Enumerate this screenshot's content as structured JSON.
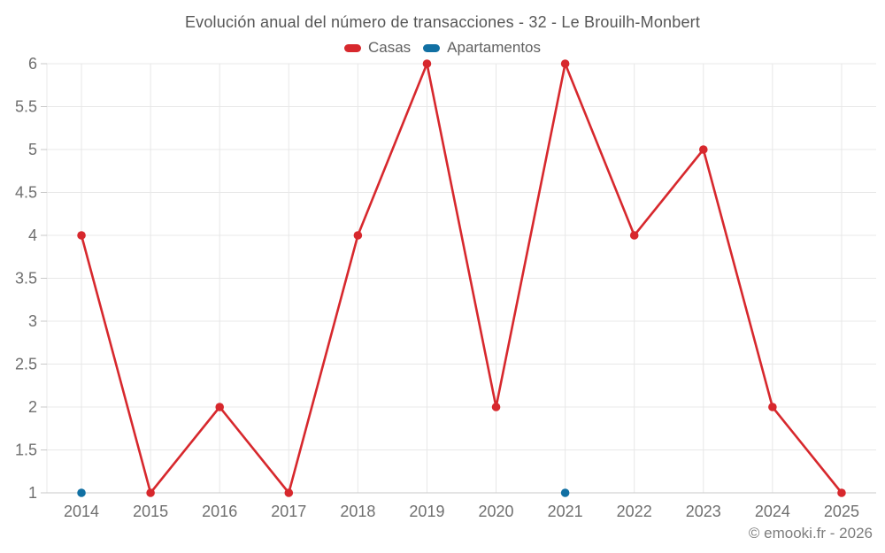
{
  "chart_data": {
    "type": "line",
    "title": "Evolución anual del número de transacciones - 32 - Le Brouilh-Monbert",
    "categories": [
      "2014",
      "2015",
      "2016",
      "2017",
      "2018",
      "2019",
      "2020",
      "2021",
      "2022",
      "2023",
      "2024",
      "2025"
    ],
    "series": [
      {
        "name": "Casas",
        "color": "#d7282d",
        "values": [
          4,
          1,
          2,
          1,
          4,
          6,
          2,
          6,
          4,
          5,
          2,
          1
        ]
      },
      {
        "name": "Apartamentos",
        "color": "#1170a3",
        "values": [
          1,
          null,
          null,
          null,
          null,
          null,
          null,
          1,
          null,
          null,
          null,
          null
        ]
      }
    ],
    "xlabel": "",
    "ylabel": "",
    "ylim": [
      1,
      6
    ],
    "ytick_step": 0.5,
    "ytick_labels": [
      "6",
      "5.5",
      "5",
      "4.5",
      "4",
      "3.5",
      "3",
      "2.5",
      "2",
      "1.5",
      "1"
    ],
    "grid": true,
    "legend_position": "top",
    "footer": "© emooki.fr - 2026",
    "colors": {
      "grid": "#e8e8e8",
      "axis_line": "#c9c9c9",
      "tick_text": "#6f6f6f",
      "title_text": "#565656"
    }
  }
}
